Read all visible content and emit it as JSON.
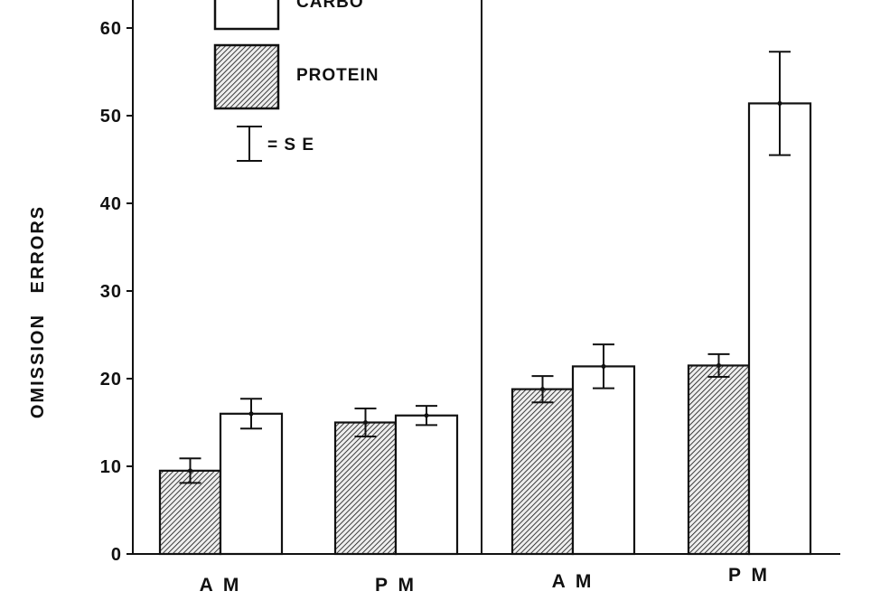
{
  "chart_data": {
    "type": "bar",
    "ylabel": "OMISSION   ERRORS",
    "ylim": [
      0,
      62
    ],
    "yticks": [
      0,
      10,
      20,
      30,
      40,
      50,
      60
    ],
    "categories": [
      "A M",
      "P M",
      "A M",
      "P M"
    ],
    "series": [
      {
        "name": "PROTEIN",
        "pattern": "hatched",
        "values": [
          9.5,
          15,
          18.8,
          21.5
        ],
        "se": [
          1.4,
          1.6,
          1.5,
          1.3
        ]
      },
      {
        "name": "CARBO",
        "pattern": "open",
        "values": [
          16,
          15.8,
          21.4,
          51.4
        ],
        "se": [
          1.7,
          1.1,
          2.5,
          5.9
        ]
      }
    ],
    "legend": {
      "position": "top-left",
      "se_label": "= S E"
    },
    "panel_divider": "between 2nd and 3rd category group"
  },
  "colors": {
    "ink": "#111111",
    "background": "#ffffff",
    "hatch_bg": "#eeeeee"
  }
}
